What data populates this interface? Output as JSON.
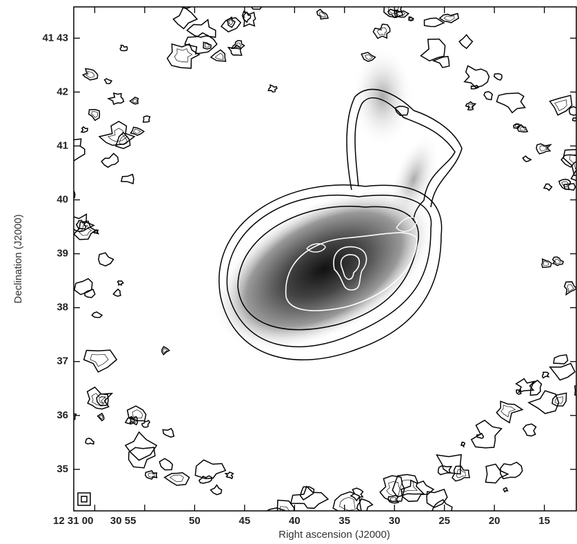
{
  "chart_data": {
    "type": "contour",
    "xlabel": "Right ascension (J2000)",
    "ylabel": "Declination (J2000)",
    "xlim": [
      62.1,
      11.8
    ],
    "ylim": [
      34.23,
      43.58
    ],
    "xticks": [
      {
        "value": 60,
        "label": "12 31 00"
      },
      {
        "value": 55,
        "label": "30 55"
      },
      50,
      45,
      40,
      35,
      30,
      25,
      20,
      15
    ],
    "yticks": [
      {
        "value": 43,
        "label": "41 43"
      },
      42,
      41,
      40,
      39,
      38,
      37,
      36,
      35
    ]
  }
}
